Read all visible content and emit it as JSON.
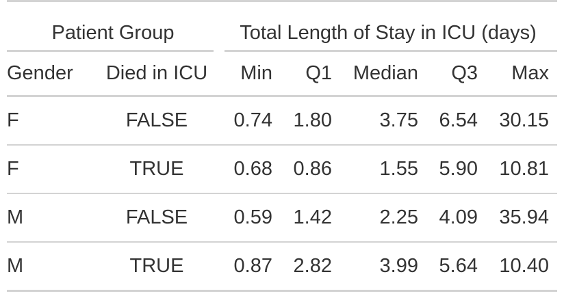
{
  "table": {
    "spanners": {
      "patient_group": "Patient Group",
      "los": "Total Length of Stay in ICU (days)"
    },
    "columns": {
      "gender": "Gender",
      "died": "Died in ICU",
      "min": "Min",
      "q1": "Q1",
      "median": "Median",
      "q3": "Q3",
      "max": "Max"
    },
    "rows": [
      {
        "gender": "F",
        "died": "FALSE",
        "min": "0.74",
        "q1": "1.80",
        "median": "3.75",
        "q3": "6.54",
        "max": "30.15"
      },
      {
        "gender": "F",
        "died": "TRUE",
        "min": "0.68",
        "q1": "0.86",
        "median": "1.55",
        "q3": "5.90",
        "max": "10.81"
      },
      {
        "gender": "M",
        "died": "FALSE",
        "min": "0.59",
        "q1": "1.42",
        "median": "2.25",
        "q3": "4.09",
        "max": "35.94"
      },
      {
        "gender": "M",
        "died": "TRUE",
        "min": "0.87",
        "q1": "2.82",
        "median": "3.99",
        "q3": "5.64",
        "max": "10.40"
      }
    ]
  }
}
